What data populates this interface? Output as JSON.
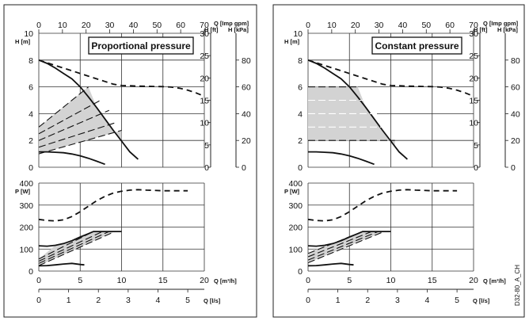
{
  "doc_id": "D32-80_A_CH",
  "chart_data": [
    {
      "type": "line",
      "title": "Proportional pressure",
      "panel": "left",
      "axes": {
        "q_m3h": {
          "label": "Q [m³/h]",
          "range": [
            0,
            20
          ],
          "ticks": [
            "0",
            "5",
            "10",
            "15",
            "20"
          ]
        },
        "q_ls": {
          "label": "Q [l/s]",
          "range": [
            0,
            5
          ],
          "ticks": [
            "0",
            "1",
            "2",
            "3",
            "4",
            "5"
          ]
        },
        "q_impgpm": {
          "label": "Q [Imp gpm]",
          "range": [
            0,
            70
          ],
          "ticks": [
            "0",
            "10",
            "20",
            "30",
            "40",
            "50",
            "60",
            "70"
          ]
        },
        "h_m": {
          "label": "H [m]",
          "range": [
            0,
            10
          ],
          "ticks": [
            "0",
            "2",
            "4",
            "6",
            "8",
            "10"
          ]
        },
        "h_ft": {
          "label": "H [ft]",
          "range": [
            0,
            30
          ],
          "ticks": [
            "0",
            "5",
            "10",
            "15",
            "20",
            "25",
            "30"
          ]
        },
        "h_kpa": {
          "label": "H [kPa]",
          "range": [
            0,
            80
          ],
          "ticks": [
            "0",
            "20",
            "40",
            "60",
            "80"
          ]
        },
        "p_w": {
          "label": "P [W]",
          "range": [
            0,
            400
          ],
          "ticks": [
            "0",
            "100",
            "200",
            "300",
            "400"
          ]
        }
      },
      "grid": true,
      "head_series": [
        {
          "style": "max-curve",
          "x": [
            0,
            2,
            4,
            6,
            8,
            9,
            10,
            11,
            12,
            13,
            14,
            15,
            16,
            17,
            18,
            19,
            20,
            21,
            22,
            23,
            24,
            25,
            26,
            27,
            28,
            29,
            30,
            31,
            32,
            33,
            34,
            35,
            35.5
          ],
          "y": [
            8.0,
            7.6,
            7.2,
            6.8,
            6.4,
            6.2,
            6.1,
            6.08,
            6.06,
            6.05,
            6.03,
            6.02,
            5.98,
            5.9,
            5.75,
            5.55,
            5.3,
            5.05,
            4.75,
            4.4,
            4.05,
            3.7,
            3.35,
            2.95,
            2.6,
            2.25,
            1.9,
            1.55,
            1.2,
            0.9,
            0.75,
            0.6,
            0.5
          ]
        },
        {
          "style": "min-curve",
          "x": [
            0,
            1,
            2,
            3,
            4,
            5,
            6,
            7,
            8
          ],
          "y": [
            1.15,
            1.15,
            1.12,
            1.08,
            0.99,
            0.85,
            0.67,
            0.45,
            0.22
          ]
        },
        {
          "style": "region-boundary",
          "x": [
            0,
            1,
            2,
            3,
            4,
            5,
            6,
            7,
            8,
            9,
            10,
            11,
            12
          ],
          "y": [
            8.0,
            7.75,
            7.4,
            7.0,
            6.6,
            6.0,
            5.25,
            4.45,
            3.6,
            2.75,
            1.95,
            1.15,
            0.6
          ]
        },
        {
          "style": "setpoint-line",
          "x": [
            0,
            6.0
          ],
          "y": [
            3.0,
            6.0
          ]
        },
        {
          "style": "setpoint-line",
          "x": [
            0,
            7.6
          ],
          "y": [
            2.5,
            5.05
          ]
        },
        {
          "style": "setpoint-line",
          "x": [
            0,
            8.5
          ],
          "y": [
            2.0,
            4.25
          ]
        },
        {
          "style": "setpoint-line",
          "x": [
            0,
            9.4
          ],
          "y": [
            1.5,
            3.35
          ]
        },
        {
          "style": "setpoint-line",
          "x": [
            0,
            10.0
          ],
          "y": [
            1.0,
            2.75
          ]
        }
      ],
      "power_series": [
        {
          "style": "max-power",
          "x": [
            0,
            1,
            2,
            3,
            4,
            5,
            6,
            7,
            8,
            9,
            10,
            11,
            12,
            13,
            14,
            15,
            16,
            17,
            18
          ],
          "y": [
            235,
            230,
            228,
            233,
            248,
            270,
            295,
            320,
            340,
            355,
            363,
            368,
            370,
            368,
            367,
            365,
            365,
            365,
            365
          ]
        },
        {
          "style": "curve",
          "x": [
            0,
            1,
            2,
            3,
            4,
            5,
            6,
            6.6,
            10
          ],
          "y": [
            115,
            113,
            117,
            125,
            138,
            155,
            170,
            180,
            180
          ]
        },
        {
          "style": "curve",
          "x": [
            0,
            1,
            2,
            3,
            4,
            5,
            5.5
          ],
          "y": [
            24,
            25,
            28,
            32,
            35,
            30,
            28
          ]
        },
        {
          "style": "setpoint-line",
          "x": [
            0,
            6.6
          ],
          "y": [
            55,
            180
          ]
        },
        {
          "style": "setpoint-line",
          "x": [
            0,
            7.7
          ],
          "y": [
            45,
            180
          ]
        },
        {
          "style": "setpoint-line",
          "x": [
            0,
            8.5
          ],
          "y": [
            35,
            180
          ]
        },
        {
          "style": "setpoint-line",
          "x": [
            0,
            9.2
          ],
          "y": [
            25,
            180
          ]
        }
      ]
    },
    {
      "type": "line",
      "title": "Constant pressure",
      "panel": "right",
      "axes": {
        "q_m3h": {
          "label": "Q [m³/h]",
          "range": [
            0,
            20
          ],
          "ticks": [
            "0",
            "5",
            "10",
            "15",
            "20"
          ]
        },
        "q_ls": {
          "label": "Q [l/s]",
          "range": [
            0,
            5
          ],
          "ticks": [
            "0",
            "1",
            "2",
            "3",
            "4",
            "5"
          ]
        },
        "q_impgpm": {
          "label": "Q [Imp gpm]",
          "range": [
            0,
            70
          ],
          "ticks": [
            "0",
            "10",
            "20",
            "30",
            "40",
            "50",
            "60",
            "70"
          ]
        },
        "h_m": {
          "label": "H [m]",
          "range": [
            0,
            10
          ],
          "ticks": [
            "0",
            "2",
            "4",
            "6",
            "8",
            "10"
          ]
        },
        "h_ft": {
          "label": "H [ft]",
          "range": [
            0,
            30
          ],
          "ticks": [
            "0",
            "5",
            "10",
            "15",
            "20",
            "25",
            "30"
          ]
        },
        "h_kpa": {
          "label": "H [kPa]",
          "range": [
            0,
            80
          ],
          "ticks": [
            "0",
            "20",
            "40",
            "60",
            "80"
          ]
        },
        "p_w": {
          "label": "P [W]",
          "range": [
            0,
            400
          ],
          "ticks": [
            "0",
            "100",
            "200",
            "300",
            "400"
          ]
        }
      },
      "grid": true,
      "head_series": [
        {
          "style": "max-curve",
          "x": [
            0,
            2,
            4,
            6,
            8,
            9,
            10,
            11,
            12,
            13,
            14,
            15,
            16,
            17,
            18,
            19,
            20,
            21,
            22,
            23,
            24,
            25,
            26,
            27,
            28,
            29,
            30,
            31,
            32,
            33,
            34,
            35,
            35.5
          ],
          "y": [
            8.0,
            7.6,
            7.2,
            6.8,
            6.4,
            6.2,
            6.1,
            6.08,
            6.06,
            6.05,
            6.03,
            6.02,
            5.98,
            5.9,
            5.75,
            5.55,
            5.3,
            5.05,
            4.75,
            4.4,
            4.05,
            3.7,
            3.35,
            2.95,
            2.6,
            2.25,
            1.9,
            1.55,
            1.2,
            0.9,
            0.75,
            0.6,
            0.5
          ]
        },
        {
          "style": "min-curve",
          "x": [
            0,
            1,
            2,
            3,
            4,
            5,
            6,
            7,
            8
          ],
          "y": [
            1.15,
            1.15,
            1.12,
            1.08,
            0.99,
            0.85,
            0.67,
            0.45,
            0.22
          ]
        },
        {
          "style": "region-boundary",
          "x": [
            0,
            1,
            2,
            3,
            4,
            5,
            6,
            7,
            8,
            9,
            10,
            11,
            12
          ],
          "y": [
            8.0,
            7.75,
            7.4,
            7.0,
            6.6,
            6.0,
            5.25,
            4.45,
            3.6,
            2.75,
            1.95,
            1.15,
            0.6
          ]
        },
        {
          "style": "setpoint-line",
          "x": [
            0,
            6.0
          ],
          "y": [
            6.0,
            6.0
          ]
        },
        {
          "style": "setpoint-line",
          "x": [
            0,
            7.3
          ],
          "y": [
            5.0,
            5.0
          ]
        },
        {
          "style": "setpoint-line",
          "x": [
            0,
            8.6
          ],
          "y": [
            4.0,
            4.0
          ]
        },
        {
          "style": "setpoint-line",
          "x": [
            0,
            9.5
          ],
          "y": [
            3.0,
            3.0
          ]
        },
        {
          "style": "setpoint-line",
          "x": [
            0,
            10.5
          ],
          "y": [
            2.0,
            2.0
          ]
        }
      ],
      "power_series": [
        {
          "style": "max-power",
          "x": [
            0,
            1,
            2,
            3,
            4,
            5,
            6,
            7,
            8,
            9,
            10,
            11,
            12,
            13,
            14,
            15,
            16,
            17,
            18
          ],
          "y": [
            235,
            230,
            228,
            233,
            248,
            270,
            295,
            320,
            340,
            355,
            363,
            368,
            370,
            368,
            367,
            365,
            365,
            365,
            365
          ]
        },
        {
          "style": "curve",
          "x": [
            0,
            1,
            2,
            3,
            4,
            5,
            6,
            6.6,
            10
          ],
          "y": [
            115,
            113,
            117,
            125,
            138,
            155,
            170,
            180,
            180
          ]
        },
        {
          "style": "curve",
          "x": [
            0,
            1,
            2,
            3,
            4,
            5,
            5.5
          ],
          "y": [
            24,
            25,
            28,
            32,
            35,
            30,
            28
          ]
        },
        {
          "style": "setpoint-line",
          "x": [
            0,
            6.6
          ],
          "y": [
            80,
            180
          ]
        },
        {
          "style": "setpoint-line",
          "x": [
            0,
            7.7
          ],
          "y": [
            65,
            180
          ]
        },
        {
          "style": "setpoint-line",
          "x": [
            0,
            8.5
          ],
          "y": [
            50,
            180
          ]
        },
        {
          "style": "setpoint-line",
          "x": [
            0,
            9.2
          ],
          "y": [
            38,
            180
          ]
        }
      ]
    }
  ]
}
